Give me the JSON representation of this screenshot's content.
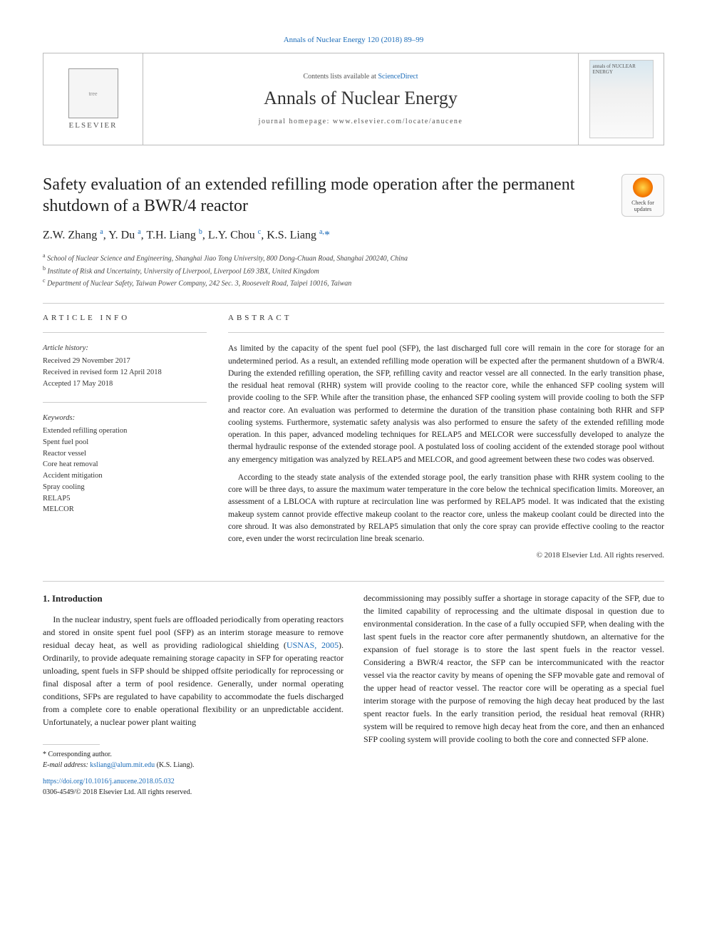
{
  "header": {
    "citation": "Annals of Nuclear Energy 120 (2018) 89–99",
    "contents_text": "Contents lists available at ",
    "contents_link": "ScienceDirect",
    "journal": "Annals of Nuclear Energy",
    "homepage_label": "journal homepage: www.elsevier.com/locate/anucene",
    "publisher": "ELSEVIER"
  },
  "article": {
    "title": "Safety evaluation of an extended refilling mode operation after the permanent shutdown of a BWR/4 reactor",
    "check_updates": "Check for updates",
    "authors_html": "Z.W. Zhang <sup>a</sup>, Y. Du <sup>a</sup>, T.H. Liang <sup>b</sup>, L.Y. Chou <sup>c</sup>, K.S. Liang <sup>a,</sup><span class='star'>*</span>",
    "affiliations": {
      "a": "School of Nuclear Science and Engineering, Shanghai Jiao Tong University, 800 Dong-Chuan Road, Shanghai 200240, China",
      "b": "Institute of Risk and Uncertainty, University of Liverpool, Liverpool L69 3BX, United Kingdom",
      "c": "Department of Nuclear Safety, Taiwan Power Company, 242 Sec. 3, Roosevelt Road, Taipei 10016, Taiwan"
    }
  },
  "info": {
    "label": "article info",
    "history_heading": "Article history:",
    "history": [
      "Received 29 November 2017",
      "Received in revised form 12 April 2018",
      "Accepted 17 May 2018"
    ],
    "keywords_heading": "Keywords:",
    "keywords": [
      "Extended refilling operation",
      "Spent fuel pool",
      "Reactor vessel",
      "Core heat removal",
      "Accident mitigation",
      "Spray cooling",
      "RELAP5",
      "MELCOR"
    ]
  },
  "abstract": {
    "label": "abstract",
    "p1": "As limited by the capacity of the spent fuel pool (SFP), the last discharged full core will remain in the core for storage for an undetermined period. As a result, an extended refilling mode operation will be expected after the permanent shutdown of a BWR/4. During the extended refilling operation, the SFP, refilling cavity and reactor vessel are all connected. In the early transition phase, the residual heat removal (RHR) system will provide cooling to the reactor core, while the enhanced SFP cooling system will provide cooling to the SFP. While after the transition phase, the enhanced SFP cooling system will provide cooling to both the SFP and reactor core. An evaluation was performed to determine the duration of the transition phase containing both RHR and SFP cooling systems. Furthermore, systematic safety analysis was also performed to ensure the safety of the extended refilling mode operation. In this paper, advanced modeling techniques for RELAP5 and MELCOR were successfully developed to analyze the thermal hydraulic response of the extended storage pool. A postulated loss of cooling accident of the extended storage pool without any emergency mitigation was analyzed by RELAP5 and MELCOR, and good agreement between these two codes was observed.",
    "p2": "According to the steady state analysis of the extended storage pool, the early transition phase with RHR system cooling to the core will be three days, to assure the maximum water temperature in the core below the technical specification limits. Moreover, an assessment of a LBLOCA with rupture at recirculation line was performed by RELAP5 model. It was indicated that the existing makeup system cannot provide effective makeup coolant to the reactor core, unless the makeup coolant could be directed into the core shroud. It was also demonstrated by RELAP5 simulation that only the core spray can provide effective cooling to the reactor core, even under the worst recirculation line break scenario.",
    "copyright": "© 2018 Elsevier Ltd. All rights reserved."
  },
  "intro": {
    "heading": "1. Introduction",
    "col1": "In the nuclear industry, spent fuels are offloaded periodically from operating reactors and stored in onsite spent fuel pool (SFP) as an interim storage measure to remove residual decay heat, as well as providing radiological shielding (USNAS, 2005). Ordinarily, to provide adequate remaining storage capacity in SFP for operating reactor unloading, spent fuels in SFP should be shipped offsite periodically for reprocessing or final disposal after a term of pool residence. Generally, under normal operating conditions, SFPs are regulated to have capability to accommodate the fuels discharged from a complete core to enable operational flexibility or an unpredictable accident. Unfortunately, a nuclear power plant waiting",
    "ref1": "USNAS, 2005",
    "col2": "decommissioning may possibly suffer a shortage in storage capacity of the SFP, due to the limited capability of reprocessing and the ultimate disposal in question due to environmental consideration. In the case of a fully occupied SFP, when dealing with the last spent fuels in the reactor core after permanently shutdown, an alternative for the expansion of fuel storage is to store the last spent fuels in the reactor vessel. Considering a BWR/4 reactor, the SFP can be intercommunicated with the reactor vessel via the reactor cavity by means of opening the SFP movable gate and removal of the upper head of reactor vessel. The reactor core will be operating as a special fuel interim storage with the purpose of removing the high decay heat produced by the last spent reactor fuels. In the early transition period, the residual heat removal (RHR) system will be required to remove high decay heat from the core, and then an enhanced SFP cooling system will provide cooling to both the core and connected SFP alone."
  },
  "footer": {
    "corr_label": "* Corresponding author.",
    "email_label": "E-mail address: ",
    "email": "ksliang@alum.mit.edu",
    "email_name": " (K.S. Liang).",
    "doi": "https://doi.org/10.1016/j.anucene.2018.05.032",
    "issn_line": "0306-4549/© 2018 Elsevier Ltd. All rights reserved."
  }
}
